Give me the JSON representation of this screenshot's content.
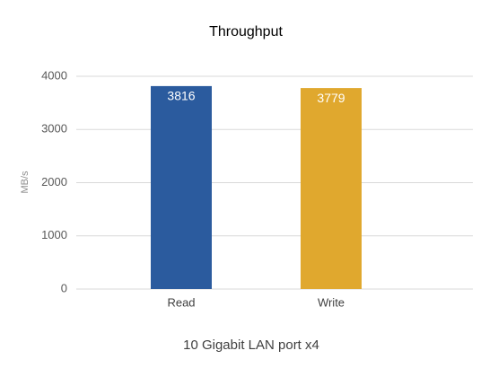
{
  "chart_data": {
    "type": "bar",
    "title": "Throughput",
    "x_label": "10 Gigabit LAN port x4",
    "y_label": "MB/s",
    "categories": [
      "Read",
      "Write"
    ],
    "values": [
      3816,
      3779
    ],
    "colors": [
      "#2b5b9e",
      "#e0a82e"
    ],
    "ylim": [
      0,
      4000
    ],
    "yticks": [
      0,
      1000,
      2000,
      3000,
      4000
    ],
    "grid": true
  }
}
